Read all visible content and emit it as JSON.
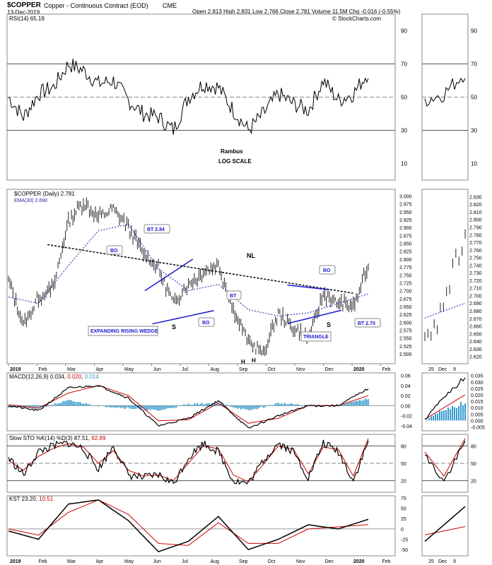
{
  "header": {
    "symbol_title": "$COPPER",
    "symbol_desc": "Copper - Continuous Contract (EOD)",
    "exchange": "CME",
    "date": "13-Dec-2019",
    "ohlc_line": "Open 2.813  High 2.831  Low 2.766  Close 2.781  Volume 11.5M  Chg -0.016 (-0.55%)",
    "brand": "© StockCharts.com",
    "change_color": "#cc0000"
  },
  "rsi_panel": {
    "label": "RSI(14) 65.19",
    "ticks": [
      "90",
      "70",
      "50",
      "30",
      "10"
    ]
  },
  "watermark": {
    "author": "Rambus",
    "scale_note": "LOG SCALE"
  },
  "price_panel": {
    "legend_price": "$COPPER (Daily) 2.781",
    "legend_ema": "EMA(30) 2.690",
    "ema_color": "#2222aa",
    "ticks": [
      "3.000",
      "2.975",
      "2.950",
      "2.925",
      "2.900",
      "2.875",
      "2.850",
      "2.825",
      "2.800",
      "2.775",
      "2.750",
      "2.725",
      "2.700",
      "2.675",
      "2.650",
      "2.625",
      "2.600",
      "2.575",
      "2.550",
      "2.525",
      "2.500"
    ],
    "inset_ticks": [
      "2.830",
      "2.820",
      "2.810",
      "2.800",
      "2.790",
      "2.780",
      "2.770",
      "2.760",
      "2.750",
      "2.740",
      "2.730",
      "2.720",
      "2.710",
      "2.700",
      "2.690",
      "2.680",
      "2.670",
      "2.660",
      "2.650",
      "2.640",
      "2.630",
      "2.620"
    ]
  },
  "annotations": {
    "bt284": "BT 2.84",
    "bo1": "BO",
    "nl": "NL",
    "bo2": "BO",
    "bt": "BT",
    "bo3": "BO",
    "bt270": "BT 2.70",
    "wedge": "EXPANDING RISING WEDGE",
    "triangle": "TRIANGLE",
    "s1": "S",
    "s2": "S",
    "h1": "H",
    "h2": "H",
    "accent_color": "#1a1acc"
  },
  "macd_panel": {
    "label_prefix": "MACD(12,26,9)",
    "macd_value": "0.034",
    "signal_value": "0.020",
    "hist_value": "0.014",
    "ticks": [
      "0.06",
      "0.04",
      "0.02",
      "0.00",
      "-0.02",
      "-0.04"
    ],
    "inset_ticks": [
      "0.035",
      "0.030",
      "0.025",
      "0.020",
      "0.015",
      "0.010",
      "0.005",
      "0.000",
      "-0.005"
    ],
    "hist_color": "#3399cc"
  },
  "sto_panel": {
    "label_prefix": "Slow STO %K(14) %D(3)",
    "k_value": "87.51",
    "d_value": "92.89",
    "ticks": [
      "80",
      "50",
      "20"
    ]
  },
  "kst_panel": {
    "label_prefix": "KST",
    "kst_value": "23.20",
    "signal_value": "10.51",
    "ticks": [
      "75",
      "50",
      "25",
      "0",
      "-25",
      "-50"
    ]
  },
  "x_axis": {
    "labels": [
      "2019",
      "Feb",
      "Mar",
      "Apr",
      "May",
      "Jun",
      "Jul",
      "Aug",
      "Sep",
      "Oct",
      "Nov",
      "Dec",
      "2020",
      "Feb"
    ],
    "inset_labels": [
      "25",
      "Dec",
      "9"
    ]
  },
  "chart_data": {
    "type": "line",
    "series": [
      {
        "name": "$COPPER (Daily)",
        "type": "ohlc",
        "anchors_x": [
          0,
          10,
          20,
          30,
          40,
          50,
          60,
          70,
          80,
          90,
          100,
          110,
          120,
          130,
          140,
          150,
          160,
          170,
          180,
          190,
          200,
          210,
          220,
          230,
          240
        ],
        "anchors_y": [
          2.73,
          2.59,
          2.68,
          2.71,
          2.92,
          2.98,
          2.93,
          2.96,
          2.9,
          2.82,
          2.77,
          2.66,
          2.72,
          2.76,
          2.78,
          2.64,
          2.54,
          2.5,
          2.63,
          2.58,
          2.55,
          2.69,
          2.66,
          2.65,
          2.78
        ],
        "last_close": 2.781,
        "ylim": [
          2.48,
          3.01
        ]
      },
      {
        "name": "EMA(30)",
        "type": "line",
        "anchors_x": [
          0,
          20,
          40,
          60,
          80,
          100,
          120,
          140,
          160,
          180,
          200,
          220,
          240
        ],
        "anchors_y": [
          2.68,
          2.66,
          2.78,
          2.89,
          2.91,
          2.77,
          2.7,
          2.72,
          2.64,
          2.62,
          2.63,
          2.66,
          2.69
        ]
      },
      {
        "name": "RSI(14)",
        "anchors_x": [
          0,
          10,
          20,
          30,
          40,
          50,
          60,
          70,
          80,
          90,
          100,
          110,
          120,
          130,
          140,
          150,
          160,
          170,
          180,
          190,
          200,
          210,
          220,
          230,
          240
        ],
        "anchors_y": [
          50,
          38,
          52,
          56,
          70,
          66,
          58,
          60,
          48,
          40,
          38,
          30,
          50,
          58,
          56,
          42,
          30,
          40,
          52,
          46,
          42,
          60,
          48,
          52,
          65
        ],
        "ylim": [
          0,
          100
        ]
      },
      {
        "name": "MACD",
        "anchors_x": [
          0,
          20,
          40,
          60,
          80,
          100,
          120,
          140,
          160,
          180,
          200,
          220,
          240
        ],
        "anchors_y": [
          0.0,
          -0.01,
          0.035,
          0.04,
          0.015,
          -0.04,
          -0.025,
          0.01,
          -0.045,
          -0.02,
          0.0,
          0.0,
          0.034
        ],
        "ylim": [
          -0.05,
          0.065
        ]
      },
      {
        "name": "Signal",
        "anchors_x": [
          0,
          20,
          40,
          60,
          80,
          100,
          120,
          140,
          160,
          180,
          200,
          220,
          240
        ],
        "anchors_y": [
          0.002,
          -0.005,
          0.025,
          0.04,
          0.02,
          -0.03,
          -0.028,
          0.005,
          -0.035,
          -0.025,
          0.0,
          0.0,
          0.02
        ]
      },
      {
        "name": "%K",
        "anchors_x": [
          0,
          10,
          20,
          30,
          40,
          50,
          60,
          70,
          80,
          90,
          100,
          110,
          120,
          130,
          140,
          150,
          160,
          170,
          180,
          190,
          200,
          210,
          220,
          230,
          240
        ],
        "anchors_y": [
          60,
          30,
          70,
          80,
          85,
          75,
          40,
          80,
          30,
          25,
          30,
          15,
          60,
          85,
          70,
          20,
          15,
          55,
          85,
          70,
          25,
          85,
          70,
          20,
          87.5
        ],
        "ylim": [
          0,
          100
        ]
      },
      {
        "name": "%D",
        "anchors_x": [
          0,
          10,
          20,
          30,
          40,
          50,
          60,
          70,
          80,
          90,
          100,
          110,
          120,
          130,
          140,
          150,
          160,
          170,
          180,
          190,
          200,
          210,
          220,
          230,
          240
        ],
        "anchors_y": [
          55,
          38,
          62,
          76,
          84,
          78,
          50,
          72,
          38,
          28,
          30,
          20,
          50,
          80,
          75,
          30,
          18,
          48,
          80,
          74,
          32,
          78,
          74,
          28,
          92.9
        ]
      },
      {
        "name": "KST",
        "anchors_x": [
          0,
          20,
          40,
          60,
          80,
          100,
          120,
          140,
          160,
          180,
          200,
          220,
          240
        ],
        "anchors_y": [
          -5,
          -25,
          60,
          70,
          20,
          -55,
          -30,
          30,
          -50,
          -25,
          10,
          0,
          23.2
        ],
        "ylim": [
          -65,
          80
        ]
      },
      {
        "name": "KST Signal",
        "anchors_x": [
          0,
          20,
          40,
          60,
          80,
          100,
          120,
          140,
          160,
          180,
          200,
          220,
          240
        ],
        "anchors_y": [
          0,
          -15,
          40,
          70,
          35,
          -35,
          -40,
          15,
          -35,
          -35,
          0,
          5,
          10.5
        ]
      }
    ]
  }
}
